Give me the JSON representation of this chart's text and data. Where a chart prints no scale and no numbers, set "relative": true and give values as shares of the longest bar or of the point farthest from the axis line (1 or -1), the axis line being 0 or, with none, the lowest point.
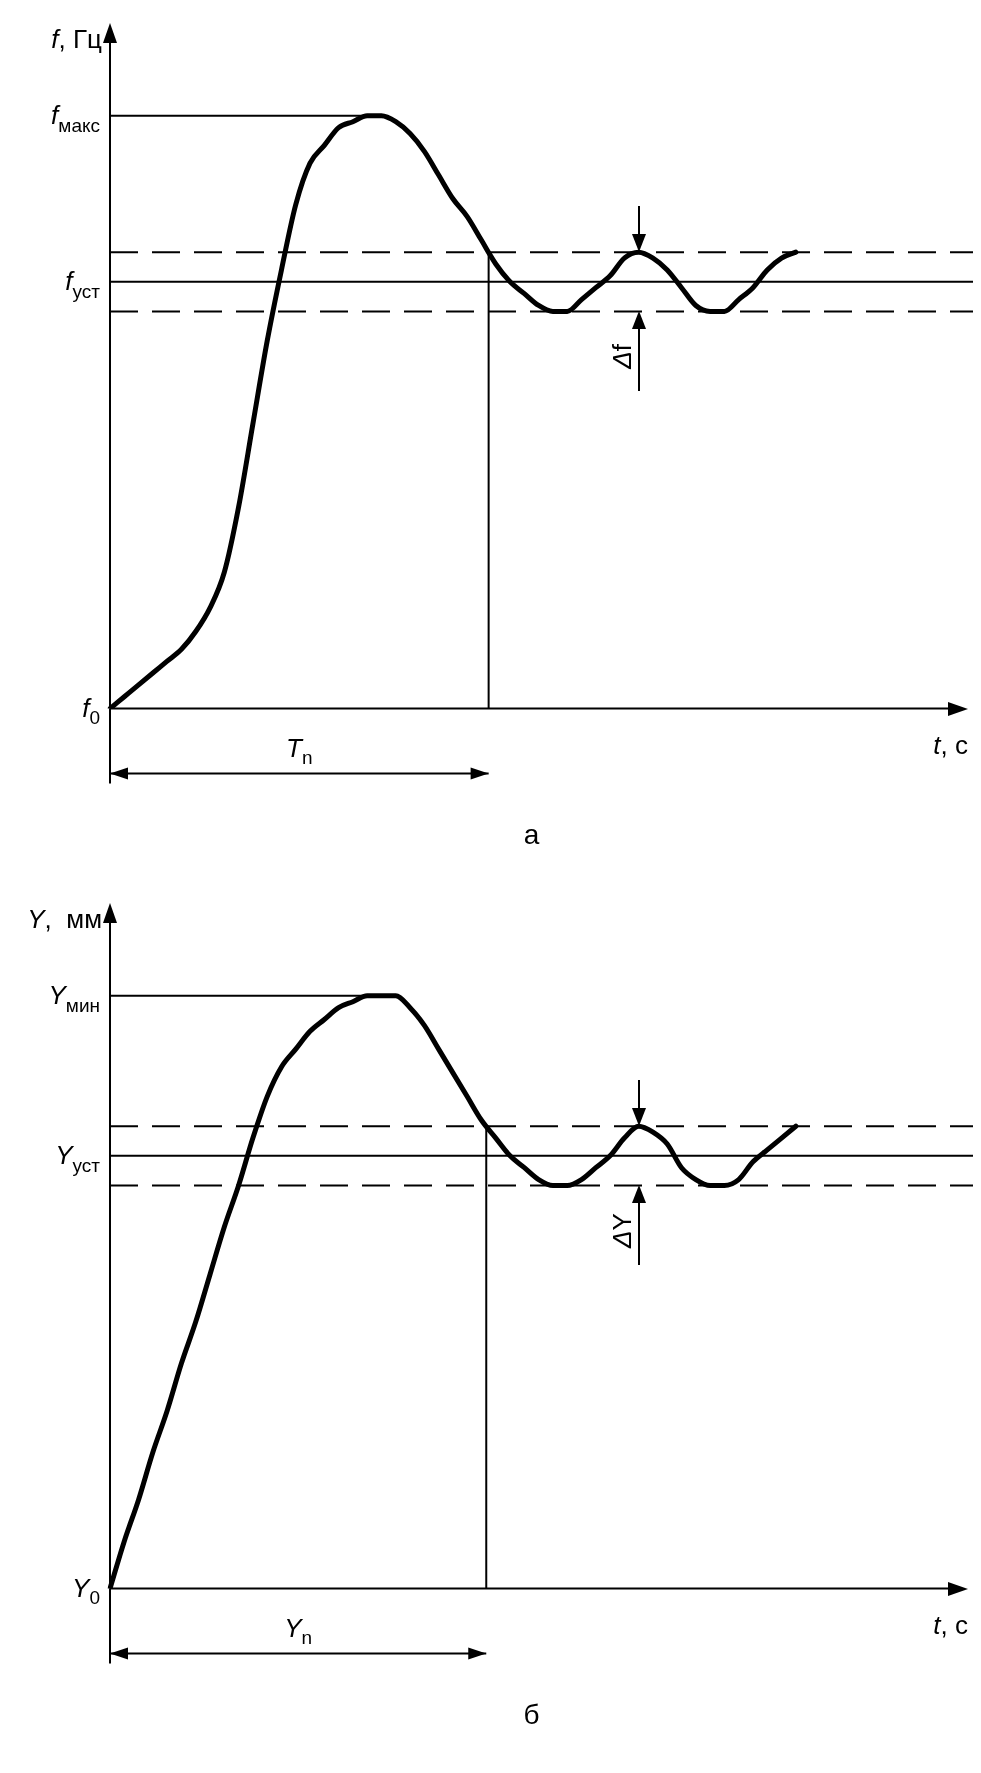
{
  "chart_data": [
    {
      "type": "line",
      "title": "а",
      "xlabel": "t, с",
      "ylabel": "f, Гц",
      "relative": true,
      "marker": "none",
      "categories": [
        null,
        null,
        null,
        null,
        null,
        null,
        null,
        null,
        null,
        null,
        null,
        null,
        null,
        null,
        null,
        null,
        null,
        null,
        null,
        null,
        null,
        null,
        null,
        null,
        null,
        null,
        null,
        null,
        null,
        null,
        null,
        null,
        null,
        null,
        null,
        null,
        null,
        null,
        null,
        null,
        null,
        null,
        null,
        null,
        null,
        null,
        null,
        null,
        null,
        null,
        null,
        null,
        null,
        null,
        null,
        null,
        null,
        null,
        null,
        null
      ],
      "series": [
        {
          "color": "#000000",
          "values": [
            0,
            0.02,
            0.04,
            0.06,
            0.08,
            0.1,
            0.13,
            0.17,
            0.23,
            0.34,
            0.48,
            0.62,
            0.74,
            0.85,
            0.92,
            0.95,
            0.98,
            0.99,
            1,
            1,
            0.99,
            0.97,
            0.94,
            0.9,
            0.86,
            0.83,
            0.79,
            0.75,
            0.72,
            0.7,
            0.68,
            0.67,
            0.67,
            0.69,
            0.71,
            0.73,
            0.76,
            0.77,
            0.76,
            0.74,
            0.71,
            0.68,
            0.67,
            0.67,
            0.69,
            0.71,
            0.74,
            0.76,
            0.77,
            null,
            null,
            null,
            null,
            null,
            null,
            null,
            null,
            null,
            null,
            null
          ]
        }
      ],
      "ref_lines": [
        {
          "axis": "y",
          "value": 1,
          "label": "f$_{макс}$"
        },
        {
          "axis": "y",
          "value": 0.72,
          "label": "f$_{уст}$"
        },
        {
          "axis": "y",
          "value": 0.77,
          "line_style": "dashed"
        },
        {
          "axis": "y",
          "value": 0.67,
          "line_style": "dashed"
        }
      ],
      "annotations": [
        "T$_{n}$",
        "Δf",
        "f$_{0}$"
      ]
    },
    {
      "type": "line",
      "title": "б",
      "xlabel": "t, с",
      "ylabel": "Y,  мм",
      "relative": true,
      "marker": "none",
      "categories": [
        null,
        null,
        null,
        null,
        null,
        null,
        null,
        null,
        null,
        null,
        null,
        null,
        null,
        null,
        null,
        null,
        null,
        null,
        null,
        null,
        null,
        null,
        null,
        null,
        null,
        null,
        null,
        null,
        null,
        null,
        null,
        null,
        null,
        null,
        null,
        null,
        null,
        null,
        null,
        null,
        null,
        null,
        null,
        null,
        null,
        null,
        null,
        null,
        null,
        null,
        null,
        null,
        null,
        null,
        null,
        null,
        null,
        null,
        null,
        null
      ],
      "series": [
        {
          "color": "#000000",
          "values": [
            0,
            0.08,
            0.15,
            0.23,
            0.3,
            0.38,
            0.45,
            0.53,
            0.61,
            0.68,
            0.76,
            0.83,
            0.88,
            0.91,
            0.94,
            0.96,
            0.98,
            0.99,
            1,
            1,
            1,
            0.98,
            0.95,
            0.91,
            0.87,
            0.83,
            0.79,
            0.76,
            0.73,
            0.71,
            0.69,
            0.68,
            0.68,
            0.69,
            0.71,
            0.73,
            0.76,
            0.78,
            0.77,
            0.75,
            0.71,
            0.69,
            0.68,
            0.68,
            0.69,
            0.72,
            0.74,
            0.76,
            0.78,
            null,
            null,
            null,
            null,
            null,
            null,
            null,
            null,
            null,
            null,
            null
          ]
        }
      ],
      "ref_lines": [
        {
          "axis": "y",
          "value": 1,
          "label": "Y$_{мин}$"
        },
        {
          "axis": "y",
          "value": 0.73,
          "label": "Y$_{уст}$"
        },
        {
          "axis": "y",
          "value": 0.78,
          "line_style": "dashed"
        },
        {
          "axis": "y",
          "value": 0.68,
          "line_style": "dashed"
        }
      ],
      "annotations": [
        "Y$_{n}$",
        "ΔY",
        "Y$_{0}$"
      ]
    }
  ]
}
